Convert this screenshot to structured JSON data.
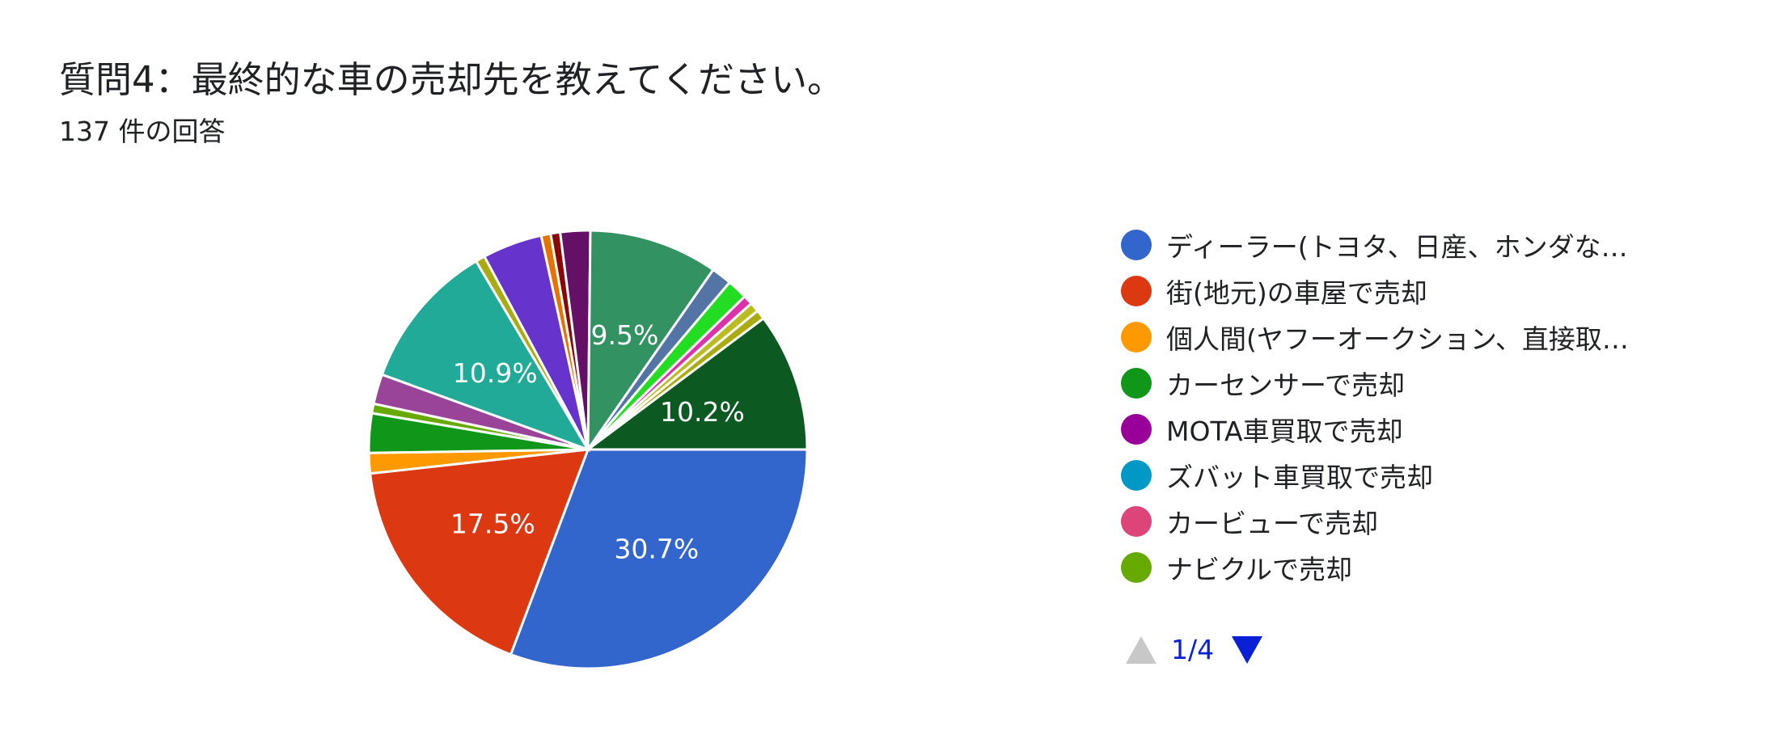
{
  "header": {
    "title": "質問4：最終的な車の売却先を教えてください。",
    "subtitle": "137 件の回答"
  },
  "pager": {
    "text": "1/4",
    "up_icon": "triangle-up-icon",
    "down_icon": "triangle-down-icon"
  },
  "chart_data": {
    "type": "pie",
    "total_responses": 137,
    "slices": [
      {
        "label": "ディーラー(トヨタ、日産、ホンダな…",
        "value": 30.7,
        "color": "#3366cc",
        "show_label": true
      },
      {
        "label": "街(地元)の車屋で売却",
        "value": 17.5,
        "color": "#dc3912",
        "show_label": true
      },
      {
        "label": "個人間(ヤフーオークション、直接取…",
        "value": 1.5,
        "color": "#ff9900",
        "show_label": false
      },
      {
        "label": "カーセンサーで売却",
        "value": 2.9,
        "color": "#109618",
        "show_label": false
      },
      {
        "label": "",
        "value": 0.7,
        "color": "#66aa00",
        "show_label": false
      },
      {
        "label": "",
        "value": 2.2,
        "color": "#994499",
        "show_label": false
      },
      {
        "label": "",
        "value": 10.9,
        "color": "#22aa99",
        "show_label": true
      },
      {
        "label": "",
        "value": 0.7,
        "color": "#aaaa11",
        "show_label": false
      },
      {
        "label": "",
        "value": 4.4,
        "color": "#6633cc",
        "show_label": false
      },
      {
        "label": "",
        "value": 0.7,
        "color": "#e67300",
        "show_label": false
      },
      {
        "label": "",
        "value": 0.7,
        "color": "#8b0707",
        "show_label": false
      },
      {
        "label": "",
        "value": 2.2,
        "color": "#651067",
        "show_label": false
      },
      {
        "label": "",
        "value": 9.5,
        "color": "#329262",
        "show_label": true
      },
      {
        "label": "",
        "value": 1.5,
        "color": "#5574a6",
        "show_label": false
      },
      {
        "label": "",
        "value": 1.5,
        "color": "#22dd22",
        "show_label": false
      },
      {
        "label": "",
        "value": 0.7,
        "color": "#dd33aa",
        "show_label": false
      },
      {
        "label": "",
        "value": 0.7,
        "color": "#bbbb22",
        "show_label": false
      },
      {
        "label": "",
        "value": 0.7,
        "color": "#aaaa11",
        "show_label": false
      },
      {
        "label": "",
        "value": 10.2,
        "color": "#0c5922",
        "show_label": true
      }
    ],
    "legend": [
      {
        "label": "ディーラー(トヨタ、日産、ホンダな…",
        "color": "#3366cc"
      },
      {
        "label": "街(地元)の車屋で売却",
        "color": "#dc3912"
      },
      {
        "label": "個人間(ヤフーオークション、直接取…",
        "color": "#ff9900"
      },
      {
        "label": "カーセンサーで売却",
        "color": "#109618"
      },
      {
        "label": "MOTA車買取で売却",
        "color": "#990099"
      },
      {
        "label": "ズバット車買取で売却",
        "color": "#0099c6"
      },
      {
        "label": "カービューで売却",
        "color": "#dd4477"
      },
      {
        "label": "ナビクルで売却",
        "color": "#66aa00"
      }
    ],
    "legend_position": "right"
  }
}
